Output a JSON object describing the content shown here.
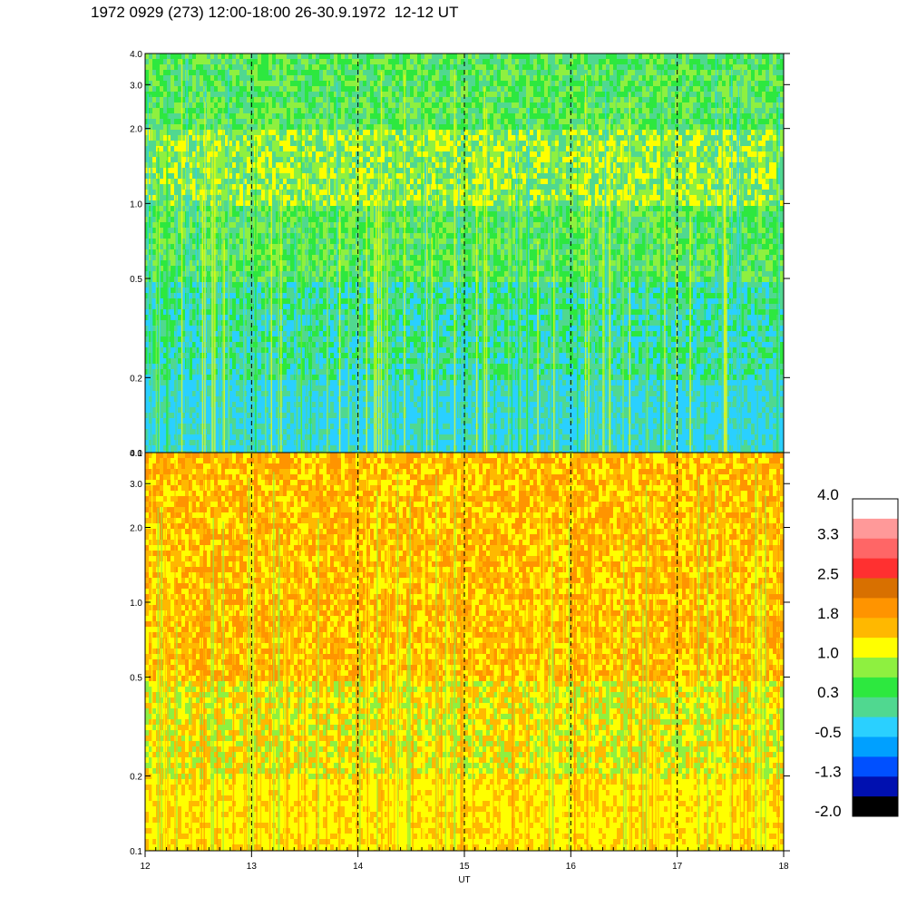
{
  "chart_data": {
    "type": "heatmap",
    "title": "1972 0929 (273) 12:00-18:00 26-30.9.1972  12-12 UT",
    "xlabel": "UT",
    "x_ticks": [
      "12",
      "13",
      "14",
      "15",
      "16",
      "17",
      "18"
    ],
    "x_range": [
      12,
      18
    ],
    "y_scale": "log",
    "y_range": [
      0.1,
      4.0
    ],
    "y_ticks": [
      "0.1",
      "0.2",
      "0.5",
      "1.0",
      "2.0",
      "3.0",
      "4.0"
    ],
    "dashed_verticals": [
      13,
      14,
      15,
      16,
      17
    ],
    "panels": [
      {
        "name": "upper",
        "base_colors": [
          "#2ad0ff",
          "#2de83f",
          "#50d890",
          "#8ef040",
          "#ffff00"
        ],
        "band_color_by_y": [
          {
            "y": 0.1,
            "colors": [
              "#2ad0ff",
              "#50d890",
              "#2ad0ff"
            ]
          },
          {
            "y": 0.2,
            "colors": [
              "#2ad0ff",
              "#2de83f",
              "#50d890"
            ]
          },
          {
            "y": 0.5,
            "colors": [
              "#2de83f",
              "#50d890",
              "#8ef040"
            ]
          },
          {
            "y": 1.0,
            "colors": [
              "#8ef040",
              "#ffff00",
              "#50d890"
            ]
          },
          {
            "y": 2.0,
            "colors": [
              "#50d890",
              "#8ef040",
              "#2de83f"
            ]
          },
          {
            "y": 4.0,
            "colors": [
              "#50d890",
              "#8ef040",
              "#2ad0ff"
            ]
          }
        ]
      },
      {
        "name": "lower",
        "base_colors": [
          "#ffff00",
          "#ffb800",
          "#ff9400",
          "#8ef040"
        ],
        "band_color_by_y": [
          {
            "y": 0.1,
            "colors": [
              "#ffff00",
              "#ffb800",
              "#ffff00"
            ]
          },
          {
            "y": 0.2,
            "colors": [
              "#ffff00",
              "#ffb800",
              "#8ef040"
            ]
          },
          {
            "y": 0.5,
            "colors": [
              "#ffb800",
              "#ff9400",
              "#ffff00"
            ]
          },
          {
            "y": 1.0,
            "colors": [
              "#ffb800",
              "#ff9400",
              "#ffff00"
            ]
          },
          {
            "y": 2.0,
            "colors": [
              "#ff9400",
              "#ffb800",
              "#ffff00"
            ]
          },
          {
            "y": 4.0,
            "colors": [
              "#ff9400",
              "#ffb800",
              "#8ef040"
            ]
          }
        ]
      }
    ],
    "colorbar": {
      "labels": [
        "4.0",
        "3.3",
        "2.5",
        "1.8",
        "1.0",
        "0.3",
        "-0.5",
        "-1.3",
        "-2.0"
      ],
      "colors_top_to_bottom": [
        "#ffffff",
        "#ff9999",
        "#ff6666",
        "#ff3030",
        "#d87000",
        "#ff9400",
        "#ffb800",
        "#ffff00",
        "#8ef040",
        "#2de83f",
        "#50d890",
        "#2ad0ff",
        "#00a0ff",
        "#0050ff",
        "#0010b0",
        "#000000"
      ]
    }
  }
}
